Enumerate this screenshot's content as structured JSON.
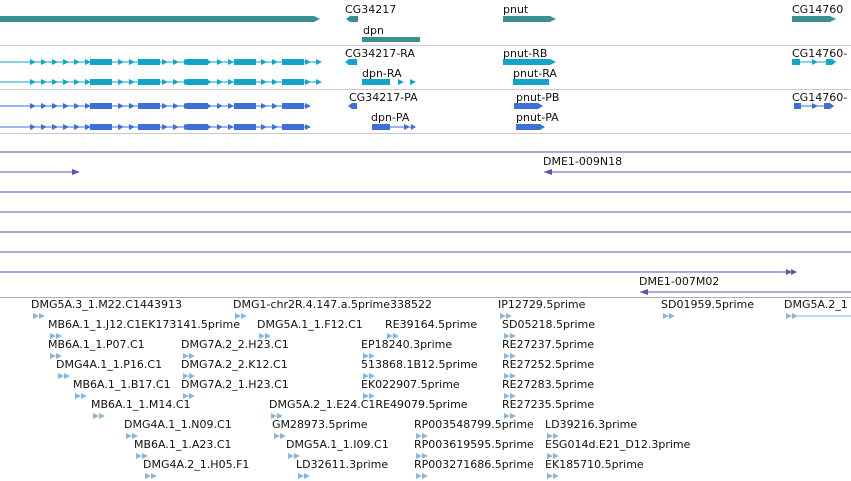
{
  "colors": {
    "gene": "#3a8f8f",
    "transcript_ra": "#11a6c7",
    "transcript_pa": "#3d6fd6",
    "clone": "#6a4ca8",
    "est": "#8ab6dc"
  },
  "gene_track": {
    "labels": [
      "CG34217",
      "dpn",
      "pnut",
      "CG14760"
    ]
  },
  "transcript_track_1": {
    "labels": [
      "CG34217-RA",
      "pnut-RB",
      "dpn-RA",
      "pnut-RA",
      "CG14760-"
    ]
  },
  "transcript_track_2": {
    "labels": [
      "CG34217-PA",
      "pnut-PB",
      "dpn-PA",
      "pnut-PA",
      "CG14760-"
    ]
  },
  "clone_track": {
    "labels": [
      "DME1-009N18",
      "DME1-007M02"
    ]
  },
  "est_track": {
    "labels": [
      "DMG5A.3_1.M22.C1443913",
      "DMG1-chr2R.4.147.a.5prime338522",
      "IP12729.5prime",
      "SD01959.5prime",
      "DMG5A.2_1",
      "MB6A.1_1.J12.C1EK173141.5prime",
      "DMG5A.1_1.F12.C1",
      "RE39164.5prime",
      "SD05218.5prime",
      "MB6A.1_1.P07.C1",
      "DMG7A.2_2.H23.C1",
      "EP18240.3prime",
      "RE27237.5prime",
      "DMG4A.1_1.P16.C1",
      "DMG7A.2_2.K12.C1",
      "513868.1B12.5prime",
      "RE27252.5prime",
      "MB6A.1_1.B17.C1",
      "DMG7A.2_1.H23.C1",
      "EK022907.5prime",
      "RE27283.5prime",
      "MB6A.1_1.M14.C1",
      "DMG5A.2_1.E24.C1RE49079.5prime",
      "RE27235.5prime",
      "DMG4A.1_1.N09.C1",
      "GM28973.5prime",
      "RP003548799.5prime",
      "LD39216.3prime",
      "MB6A.1_1.A23.C1",
      "DMG5A.1_1.I09.C1",
      "RP003619595.5prime",
      "ESG014d.E21_D12.3prime",
      "DMG4A.2_1.H05.F1",
      "LD32611.3prime",
      "RP003271686.5prime",
      "EK185710.5prime"
    ]
  }
}
